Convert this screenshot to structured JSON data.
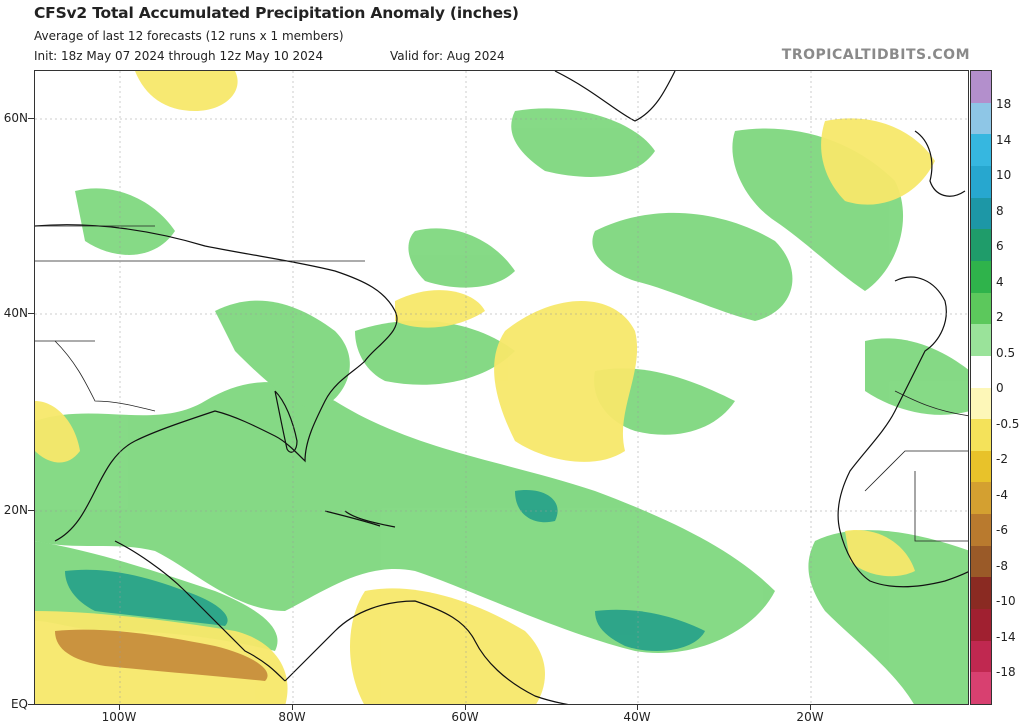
{
  "header": {
    "title": "CFSv2 Total Accumulated Precipitation Anomaly (inches)",
    "subtitle": "Average of last 12 forecasts (12 runs x 1 members)",
    "init": "Init: 18z May 07 2024 through 12z May 10 2024",
    "valid": "Valid for: Aug 2024",
    "brand": "TROPICALTIDBITS.COM"
  },
  "map": {
    "lat_labels": [
      "60N",
      "40N",
      "20N",
      "EQ"
    ],
    "lon_labels": [
      "100W",
      "80W",
      "60W",
      "40W",
      "20W"
    ]
  },
  "colorbar": {
    "labels": [
      "18",
      "14",
      "10",
      "8",
      "6",
      "4",
      "2",
      "0.5",
      "0",
      "-0.5",
      "-2",
      "-4",
      "-6",
      "-8",
      "-10",
      "-14",
      "-18"
    ],
    "colors": [
      "#b38fcc",
      "#8ec6e6",
      "#36b7e0",
      "#27a7cf",
      "#1d97a6",
      "#1f9c6a",
      "#2fb34b",
      "#5cc85c",
      "#9ae39a",
      "#ffffff",
      "#fdf7b8",
      "#f4e25a",
      "#e8c22a",
      "#d4a030",
      "#b97a2e",
      "#9a5a28",
      "#8a2a22",
      "#a02030",
      "#c02850",
      "#d84070"
    ]
  }
}
